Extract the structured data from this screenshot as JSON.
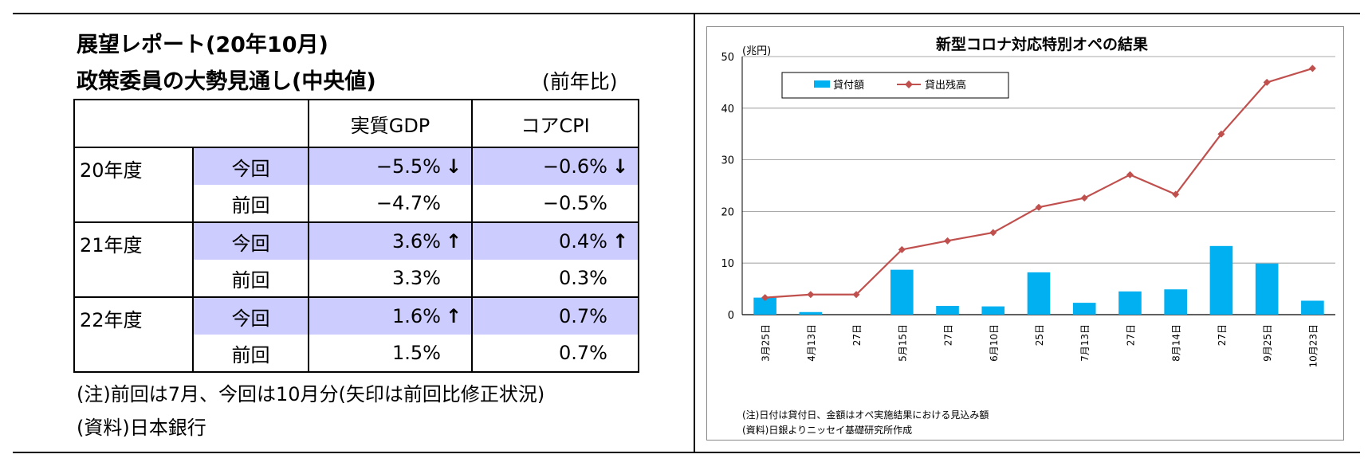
{
  "left_panel": {
    "title_line1": "展望レポート(20年10月)",
    "title_line2": "政策委員の大勢見通し(中央値)",
    "unit": "(前年比)",
    "columns": [
      "実質GDP",
      "コアCPI"
    ],
    "highlight_color": "#ccccff",
    "rows": [
      {
        "year": "20年度",
        "current": {
          "label": "今回",
          "gdp": "−5.5%",
          "gdp_arrow": "↓",
          "cpi": "−0.6%",
          "cpi_arrow": "↓"
        },
        "previous": {
          "label": "前回",
          "gdp": "−4.7%",
          "cpi": "−0.5%"
        }
      },
      {
        "year": "21年度",
        "current": {
          "label": "今回",
          "gdp": "3.6%",
          "gdp_arrow": "↑",
          "cpi": "0.4%",
          "cpi_arrow": "↑"
        },
        "previous": {
          "label": "前回",
          "gdp": "3.3%",
          "cpi": "0.3%"
        }
      },
      {
        "year": "22年度",
        "current": {
          "label": "今回",
          "gdp": "1.6%",
          "gdp_arrow": "↑",
          "cpi": "0.7%",
          "cpi_arrow": ""
        },
        "previous": {
          "label": "前回",
          "gdp": "1.5%",
          "cpi": "0.7%"
        }
      }
    ],
    "note": "(注)前回は7月、今回は10月分(矢印は前回比修正状況)",
    "source": "(資料)日本銀行"
  },
  "chart_data": {
    "type": "bar",
    "title": "新型コロナ対応特別オペの結果",
    "unit_label": "(兆円)",
    "categories": [
      "3月25日",
      "4月13日",
      "27日",
      "5月15日",
      "27日",
      "6月10日",
      "25日",
      "7月13日",
      "27日",
      "8月14日",
      "27日",
      "9月25日",
      "10月23日"
    ],
    "ylim": [
      0,
      50
    ],
    "yticks": [
      0,
      10,
      20,
      30,
      40,
      50
    ],
    "grid": true,
    "legend_placement": "top-left",
    "series": [
      {
        "name": "貸付額",
        "type": "bar",
        "color": "#00b0f0",
        "values": [
          3.3,
          0.5,
          0,
          8.7,
          1.7,
          1.6,
          8.2,
          2.3,
          4.5,
          4.9,
          13.3,
          9.9,
          2.7
        ]
      },
      {
        "name": "貸出残高",
        "type": "line",
        "color": "#c0504d",
        "values": [
          3.3,
          3.9,
          3.9,
          12.6,
          14.3,
          15.9,
          20.8,
          22.6,
          27.1,
          23.3,
          35.0,
          45.0,
          47.7
        ]
      }
    ],
    "note": "(注)日付は貸付日、金額はオペ実施結果における見込み額",
    "source": "(資料)日銀よりニッセイ基礎研究所作成"
  }
}
